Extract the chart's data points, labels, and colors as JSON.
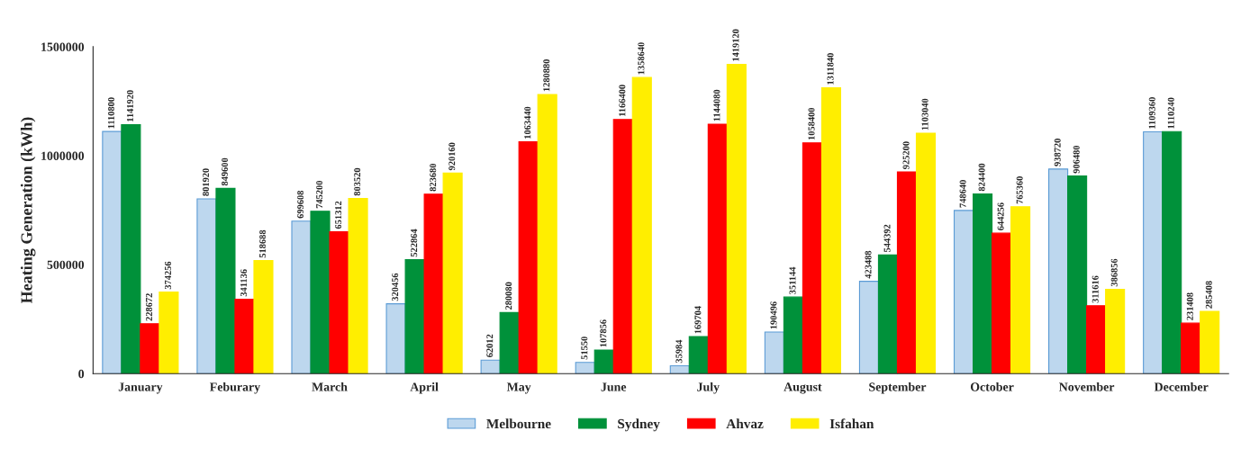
{
  "chart_data": {
    "type": "bar",
    "ylabel": "Heating Generation (kWh)",
    "categories": [
      "January",
      "Feburary",
      "March",
      "April",
      "May",
      "June",
      "July",
      "August",
      "September",
      "October",
      "November",
      "December"
    ],
    "series": [
      {
        "name": "Melbourne",
        "color": "#bdd7ee",
        "values": [
          1110800,
          801920,
          699608,
          320456,
          62012,
          51550,
          35984,
          190496,
          423488,
          748640,
          938720,
          1109360
        ]
      },
      {
        "name": "Sydney",
        "color": "#00913a",
        "values": [
          1141920,
          849600,
          745200,
          522864,
          280080,
          107856,
          169704,
          351144,
          544392,
          824400,
          906480,
          1110240
        ]
      },
      {
        "name": "Ahvaz",
        "color": "#ff0000",
        "values": [
          228672,
          341136,
          651312,
          823680,
          1063440,
          1166400,
          1144080,
          1058400,
          925200,
          644256,
          311616,
          231408
        ]
      },
      {
        "name": "Isfahan",
        "color": "#ffee00",
        "values": [
          374256,
          518688,
          803520,
          920160,
          1280880,
          1358640,
          1419120,
          1311840,
          1103040,
          765360,
          386856,
          285408
        ]
      }
    ],
    "ylim": [
      0,
      1500000
    ],
    "yticks": [
      0,
      500000,
      1000000,
      1500000
    ],
    "grid": false,
    "legend": "bottom",
    "data_labels": true
  }
}
